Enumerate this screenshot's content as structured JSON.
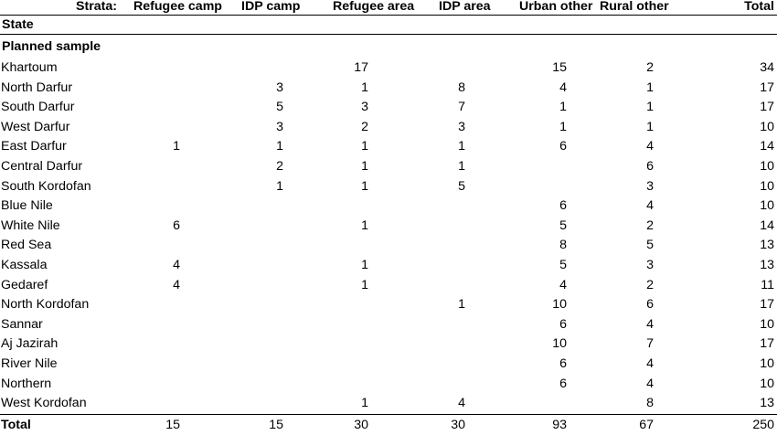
{
  "header": {
    "strata_label": "Strata:",
    "columns": [
      "Refugee camp",
      "IDP camp",
      "Refugee area",
      "IDP area",
      "Urban other",
      "Rural other",
      "Total"
    ],
    "state_label": "State"
  },
  "section_label": "Planned sample",
  "rows": [
    {
      "state": "Khartoum",
      "values": [
        "",
        "",
        "17",
        "",
        "15",
        "2",
        "34"
      ]
    },
    {
      "state": "North Darfur",
      "values": [
        "",
        "3",
        "1",
        "8",
        "4",
        "1",
        "17"
      ]
    },
    {
      "state": "South Darfur",
      "values": [
        "",
        "5",
        "3",
        "7",
        "1",
        "1",
        "17"
      ]
    },
    {
      "state": "West Darfur",
      "values": [
        "",
        "3",
        "2",
        "3",
        "1",
        "1",
        "10"
      ]
    },
    {
      "state": "East Darfur",
      "values": [
        "1",
        "1",
        "1",
        "1",
        "6",
        "4",
        "14"
      ]
    },
    {
      "state": "Central Darfur",
      "values": [
        "",
        "2",
        "1",
        "1",
        "",
        "6",
        "10"
      ]
    },
    {
      "state": "South Kordofan",
      "values": [
        "",
        "1",
        "1",
        "5",
        "",
        "3",
        "10"
      ]
    },
    {
      "state": "Blue Nile",
      "values": [
        "",
        "",
        "",
        "",
        "6",
        "4",
        "10"
      ]
    },
    {
      "state": "White Nile",
      "values": [
        "6",
        "",
        "1",
        "",
        "5",
        "2",
        "14"
      ]
    },
    {
      "state": "Red Sea",
      "values": [
        "",
        "",
        "",
        "",
        "8",
        "5",
        "13"
      ]
    },
    {
      "state": "Kassala",
      "values": [
        "4",
        "",
        "1",
        "",
        "5",
        "3",
        "13"
      ]
    },
    {
      "state": "Gedaref",
      "values": [
        "4",
        "",
        "1",
        "",
        "4",
        "2",
        "11"
      ]
    },
    {
      "state": "North Kordofan",
      "values": [
        "",
        "",
        "",
        "1",
        "10",
        "6",
        "17"
      ]
    },
    {
      "state": "Sannar",
      "values": [
        "",
        "",
        "",
        "",
        "6",
        "4",
        "10"
      ]
    },
    {
      "state": "Aj Jazirah",
      "values": [
        "",
        "",
        "",
        "",
        "10",
        "7",
        "17"
      ]
    },
    {
      "state": "River Nile",
      "values": [
        "",
        "",
        "",
        "",
        "6",
        "4",
        "10"
      ]
    },
    {
      "state": "Northern",
      "values": [
        "",
        "",
        "",
        "",
        "6",
        "4",
        "10"
      ]
    },
    {
      "state": "West Kordofan",
      "values": [
        "",
        "",
        "1",
        "4",
        "",
        "8",
        "13"
      ]
    }
  ],
  "total": {
    "state": "Total",
    "values": [
      "15",
      "15",
      "30",
      "30",
      "93",
      "67",
      "250"
    ]
  }
}
